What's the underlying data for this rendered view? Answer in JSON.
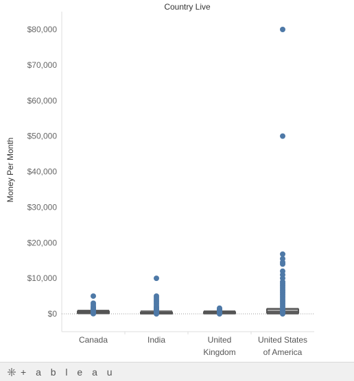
{
  "chart_data": {
    "type": "box",
    "title": "Country Live",
    "ylabel": "Money Per Month",
    "ylim": [
      -5000,
      84000
    ],
    "yticks": [
      0,
      10000,
      20000,
      30000,
      40000,
      50000,
      60000,
      70000,
      80000
    ],
    "ytick_labels": [
      "$0",
      "$10,000",
      "$20,000",
      "$30,000",
      "$40,000",
      "$50,000",
      "$60,000",
      "$70,000",
      "$80,000"
    ],
    "categories": [
      {
        "label": [
          "Canada"
        ],
        "box": [
          50,
          200,
          450,
          700,
          1000
        ]
      },
      {
        "label": [
          "India"
        ],
        "box": [
          0,
          50,
          150,
          450,
          800
        ]
      },
      {
        "label": [
          "United",
          "Kingdom"
        ],
        "box": [
          0,
          100,
          200,
          500,
          800
        ]
      },
      {
        "label": [
          "United States",
          "of America"
        ],
        "box": [
          0,
          300,
          700,
          1300,
          1500
        ]
      }
    ],
    "points": [
      [
        5000,
        3000,
        2500,
        2000,
        1800,
        1500,
        1200,
        1000,
        800,
        600,
        500,
        400,
        300,
        200,
        100,
        50
      ],
      [
        10000,
        5000,
        4500,
        4000,
        3500,
        3000,
        2500,
        2000,
        1800,
        1500,
        1200,
        1000,
        800,
        600,
        400,
        300,
        200,
        100,
        0
      ],
      [
        1600,
        1400,
        1200,
        1000,
        800,
        600,
        500,
        400,
        300,
        200,
        100,
        0
      ],
      [
        80000,
        50000,
        16800,
        15500,
        14500,
        14000,
        12000,
        11000,
        10000,
        9000,
        8500,
        8000,
        7500,
        7000,
        6500,
        6000,
        5500,
        5000,
        4500,
        4000,
        3500,
        3000,
        2500,
        2000,
        1500,
        1000,
        800,
        600,
        400,
        200,
        0
      ]
    ],
    "colors": {
      "point": "#4e79a7",
      "box_line": "#555555",
      "zero_line": "#999999",
      "axis": "#dddddd"
    }
  },
  "footer": {
    "logo_icon": "tableau-logo-icon",
    "wordmark": "+ a b l e a u"
  }
}
